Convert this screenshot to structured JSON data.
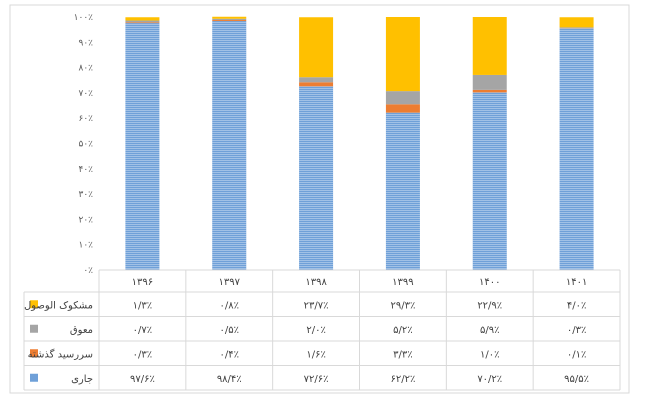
{
  "chart_data": {
    "type": "bar",
    "stacked": true,
    "percent": true,
    "categories": [
      "۱۳۹۶",
      "۱۳۹۷",
      "۱۳۹۸",
      "۱۳۹۹",
      "۱۴۰۰",
      "۱۴۰۱"
    ],
    "series": [
      {
        "name": "جاری",
        "color": "#6fa0d8",
        "values": [
          97.6,
          98.4,
          72.6,
          62.2,
          70.2,
          95.5
        ],
        "labels": [
          "۹۷/۶٪",
          "۹۸/۴٪",
          "۷۲/۶٪",
          "۶۲/۲٪",
          "۷۰/۲٪",
          "۹۵/۵٪"
        ]
      },
      {
        "name": "سررسید گذشته",
        "color": "#ed7d31",
        "values": [
          0.3,
          0.4,
          1.6,
          3.3,
          1.0,
          0.1
        ],
        "labels": [
          "۰/۳٪",
          "۰/۴٪",
          "۱/۶٪",
          "۳/۳٪",
          "۱/۰٪",
          "۰/۱٪"
        ]
      },
      {
        "name": "معوق",
        "color": "#a5a5a5",
        "values": [
          0.7,
          0.5,
          2.0,
          5.2,
          5.9,
          0.3
        ],
        "labels": [
          "۰/۷٪",
          "۰/۵٪",
          "۲/۰٪",
          "۵/۲٪",
          "۵/۹٪",
          "۰/۳٪"
        ]
      },
      {
        "name": "مشکوک الوصول",
        "color": "#ffc000",
        "values": [
          1.3,
          0.8,
          23.7,
          29.3,
          22.9,
          4.0
        ],
        "labels": [
          "۱/۳٪",
          "۰/۸٪",
          "۲۳/۷٪",
          "۲۹/۳٪",
          "۲۲/۹٪",
          "۴/۰٪"
        ]
      }
    ],
    "ylim": [
      0,
      100
    ],
    "yticks": [
      0,
      10,
      20,
      30,
      40,
      50,
      60,
      70,
      80,
      90,
      100
    ],
    "ytick_labels": [
      "۰٪",
      "۱۰٪",
      "۲۰٪",
      "۳۰٪",
      "۴۰٪",
      "۵۰٪",
      "۶۰٪",
      "۷۰٪",
      "۸۰٪",
      "۹۰٪",
      "۱۰۰٪"
    ],
    "grid": false,
    "legend": "data-table-left"
  }
}
